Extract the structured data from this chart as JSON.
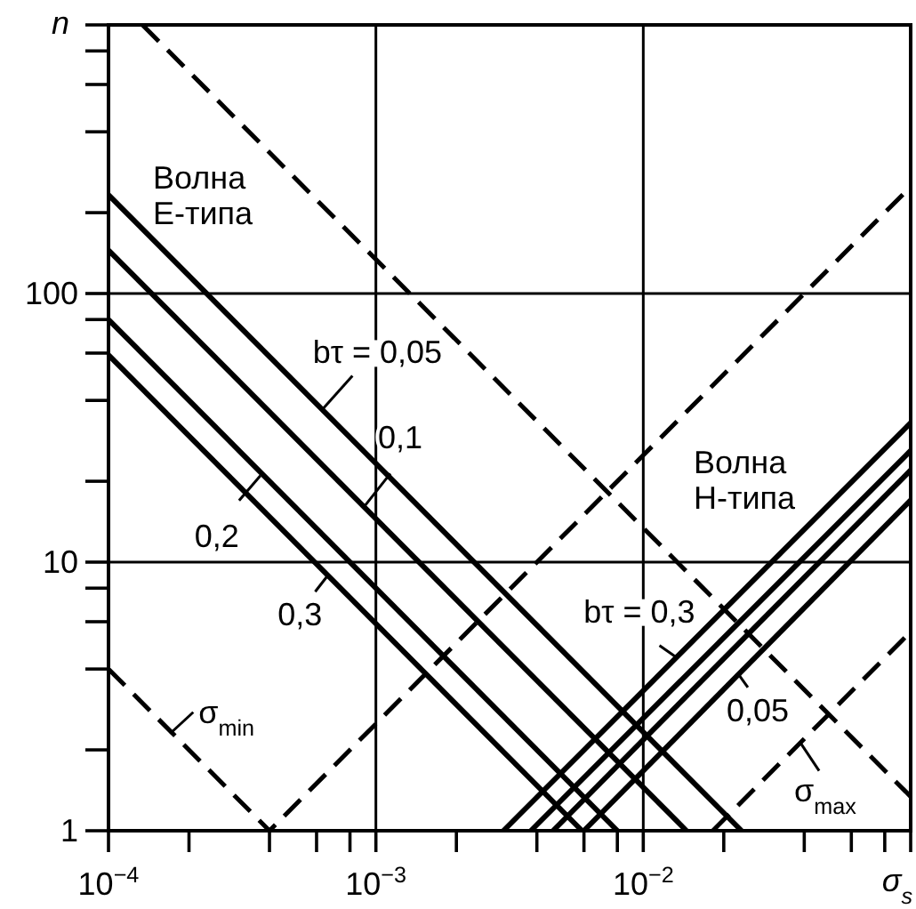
{
  "chart_data": {
    "type": "line",
    "log": "xy",
    "xlim": [
      0.0001,
      0.1
    ],
    "ylim": [
      1,
      1000
    ],
    "xticks": [
      {
        "value": 0.0001,
        "label": "10$^{−4}$"
      },
      {
        "value": 0.0002,
        "label": null
      },
      {
        "value": 0.0004,
        "label": null
      },
      {
        "value": 0.0006,
        "label": null
      },
      {
        "value": 0.0008,
        "label": null
      },
      {
        "value": 0.001,
        "label": "10$^{−3}$"
      },
      {
        "value": 0.002,
        "label": null
      },
      {
        "value": 0.004,
        "label": null
      },
      {
        "value": 0.006,
        "label": null
      },
      {
        "value": 0.008,
        "label": null
      },
      {
        "value": 0.01,
        "label": "10$^{−2}$"
      },
      {
        "value": 0.02,
        "label": null
      },
      {
        "value": 0.04,
        "label": null
      },
      {
        "value": 0.06,
        "label": null
      },
      {
        "value": 0.08,
        "label": null
      },
      {
        "value": 0.1,
        "label": null
      }
    ],
    "yticks": [
      1,
      {
        "value": 2,
        "label": null
      },
      {
        "value": 4,
        "label": null
      },
      {
        "value": 6,
        "label": null
      },
      {
        "value": 8,
        "label": null
      },
      10,
      {
        "value": 20,
        "label": null
      },
      {
        "value": 40,
        "label": null
      },
      {
        "value": 60,
        "label": null
      },
      {
        "value": 80,
        "label": null
      },
      100,
      {
        "value": 200,
        "label": null
      },
      {
        "value": 400,
        "label": null
      },
      {
        "value": 600,
        "label": null
      },
      {
        "value": 800,
        "label": null
      },
      {
        "value": 1000,
        "label": null
      }
    ],
    "xlabel": "σ$_{s}$",
    "ylabel": "n",
    "grid": true,
    "series": [
      {
        "color": "#000000",
        "line_style": "solid",
        "x": [
          0.0001,
          0.0233
        ],
        "values": [
          233,
          1
        ]
      },
      {
        "color": "#000000",
        "line_style": "solid",
        "x": [
          0.0001,
          0.0145
        ],
        "values": [
          145,
          1
        ]
      },
      {
        "color": "#000000",
        "line_style": "solid",
        "x": [
          0.0001,
          0.008
        ],
        "values": [
          80,
          1
        ]
      },
      {
        "color": "#000000",
        "line_style": "solid",
        "x": [
          0.0001,
          0.0059
        ],
        "values": [
          59,
          1
        ]
      },
      {
        "color": "#000000",
        "line_style": "solid",
        "x": [
          0.003,
          0.1
        ],
        "values": [
          1,
          33
        ]
      },
      {
        "color": "#000000",
        "line_style": "solid",
        "x": [
          0.0038,
          0.1
        ],
        "values": [
          1,
          26
        ]
      },
      {
        "color": "#000000",
        "line_style": "solid",
        "x": [
          0.0046,
          0.1
        ],
        "values": [
          1,
          22
        ]
      },
      {
        "color": "#000000",
        "line_style": "solid",
        "x": [
          0.006,
          0.1
        ],
        "values": [
          1,
          17
        ]
      },
      {
        "color": "#000000",
        "line_style": "dashed",
        "x": [
          0.0001,
          0.0004,
          0.1
        ],
        "values": [
          4,
          1,
          250
        ]
      },
      {
        "color": "#000000",
        "line_style": "dashed",
        "x": [
          0.000134,
          0.1
        ],
        "values": [
          1000,
          1.34
        ]
      },
      {
        "color": "#000000",
        "line_style": "dashed",
        "x": [
          0.0182,
          0.1
        ],
        "values": [
          1,
          5.5
        ]
      }
    ],
    "annotations": [
      "Волна E-типа",
      {
        "text": "bτ = 0,05",
        "x": 0.00063,
        "y": 37
      },
      {
        "text": "0,1",
        "x": 0.0009,
        "y": 16
      },
      {
        "text": "0,2",
        "x": 0.00037,
        "y": 21
      },
      {
        "text": "0,3",
        "x": 0.00066,
        "y": 8.9
      },
      {
        "text": "σ$_{min}$",
        "x": 0.00017,
        "y": 2.3
      },
      "Волна H-типа",
      {
        "text": "bτ = 0,3",
        "x": 0.0134,
        "y": 4.4
      },
      {
        "text": "0,05",
        "x": 0.0228,
        "y": 3.8
      },
      {
        "text": "σ$_{max}$",
        "x": 0.039,
        "y": 2.1
      }
    ]
  }
}
